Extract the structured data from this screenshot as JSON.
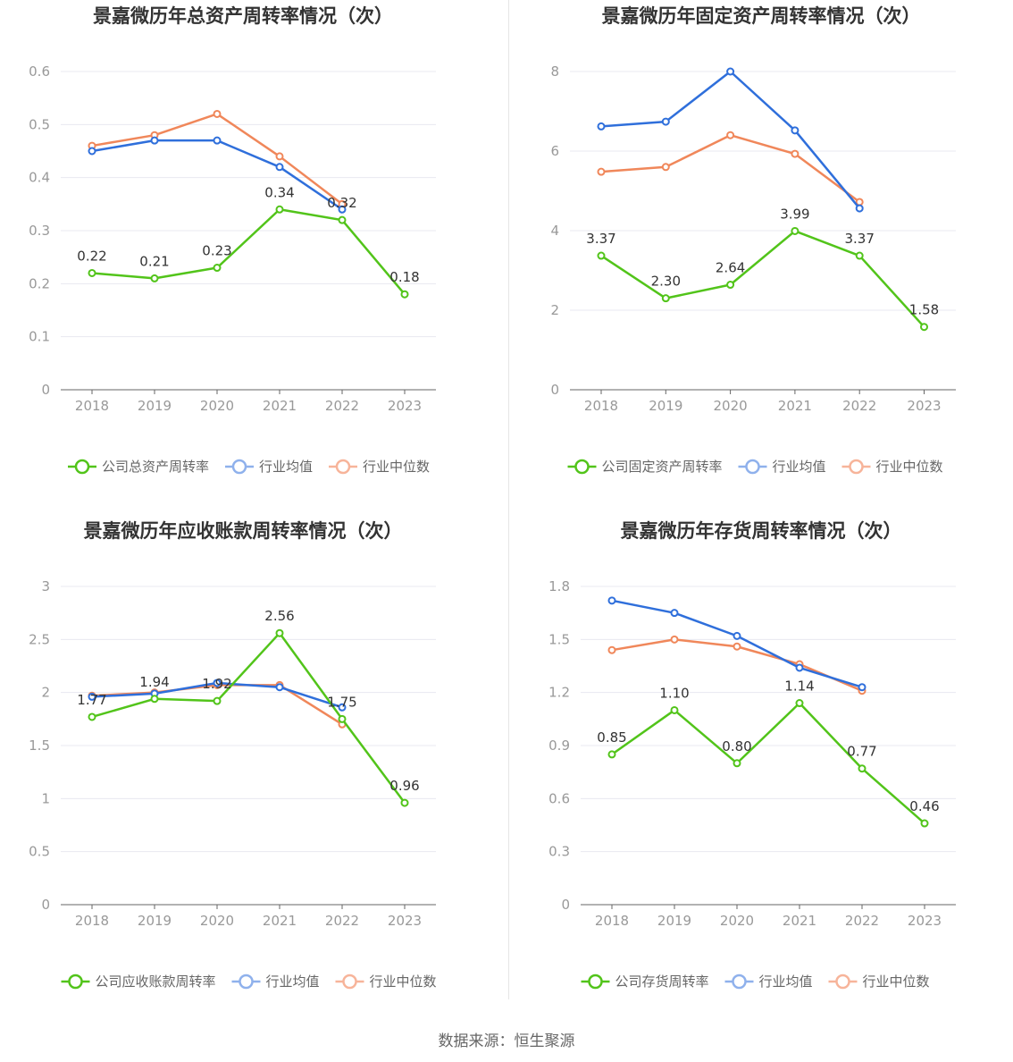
{
  "colors": {
    "company": "#52c41a",
    "avg": "#2f6fdb",
    "median": "#f0875a",
    "avg_legend": "#8fb1ec",
    "median_legend": "#f7b49a",
    "grid": "#e8e8f0",
    "axis": "#666666"
  },
  "source": "数据来源：恒生聚源",
  "chart_data": [
    {
      "type": "line",
      "title": "景嘉微历年总资产周转率情况（次）",
      "categories": [
        "2018",
        "2019",
        "2020",
        "2021",
        "2022",
        "2023"
      ],
      "ylim": [
        0,
        0.6
      ],
      "yticks": [
        "0",
        "0.1",
        "0.2",
        "0.3",
        "0.4",
        "0.5",
        "0.6"
      ],
      "ytick_values": [
        0,
        0.1,
        0.2,
        0.3,
        0.4,
        0.5,
        0.6
      ],
      "series": [
        {
          "name": "公司总资产周转率",
          "key": "company",
          "values": [
            0.22,
            0.21,
            0.23,
            0.34,
            0.32,
            0.18
          ],
          "labels": [
            "0.22",
            "0.21",
            "0.23",
            "0.34",
            "0.32",
            "0.18"
          ]
        },
        {
          "name": "行业均值",
          "key": "avg",
          "values": [
            0.45,
            0.47,
            0.47,
            0.42,
            0.34,
            null
          ]
        },
        {
          "name": "行业中位数",
          "key": "median",
          "values": [
            0.46,
            0.48,
            0.52,
            0.44,
            0.35,
            null
          ]
        }
      ]
    },
    {
      "type": "line",
      "title": "景嘉微历年固定资产周转率情况（次）",
      "categories": [
        "2018",
        "2019",
        "2020",
        "2021",
        "2022",
        "2023"
      ],
      "ylim": [
        0,
        8
      ],
      "yticks": [
        "0",
        "2",
        "4",
        "6",
        "8"
      ],
      "ytick_values": [
        0,
        2,
        4,
        6,
        8
      ],
      "series": [
        {
          "name": "公司固定资产周转率",
          "key": "company",
          "values": [
            3.37,
            2.3,
            2.64,
            3.99,
            3.37,
            1.58
          ],
          "labels": [
            "3.37",
            "2.30",
            "2.64",
            "3.99",
            "3.37",
            "1.58"
          ]
        },
        {
          "name": "行业均值",
          "key": "avg",
          "values": [
            6.62,
            6.74,
            8.0,
            6.52,
            4.56,
            null
          ]
        },
        {
          "name": "行业中位数",
          "key": "median",
          "values": [
            5.48,
            5.6,
            6.4,
            5.93,
            4.72,
            null
          ]
        }
      ]
    },
    {
      "type": "line",
      "title": "景嘉微历年应收账款周转率情况（次）",
      "categories": [
        "2018",
        "2019",
        "2020",
        "2021",
        "2022",
        "2023"
      ],
      "ylim": [
        0,
        3
      ],
      "yticks": [
        "0",
        "0.5",
        "1",
        "1.5",
        "2",
        "2.5",
        "3"
      ],
      "ytick_values": [
        0,
        0.5,
        1,
        1.5,
        2,
        2.5,
        3
      ],
      "series": [
        {
          "name": "公司应收账款周转率",
          "key": "company",
          "values": [
            1.77,
            1.94,
            1.92,
            2.56,
            1.75,
            0.96
          ],
          "labels": [
            "1.77",
            "1.94",
            "1.92",
            "2.56",
            "1.75",
            "0.96"
          ]
        },
        {
          "name": "行业均值",
          "key": "avg",
          "values": [
            1.96,
            1.99,
            2.09,
            2.05,
            1.86,
            null
          ]
        },
        {
          "name": "行业中位数",
          "key": "median",
          "values": [
            1.97,
            2.0,
            2.07,
            2.07,
            1.7,
            null
          ]
        }
      ]
    },
    {
      "type": "line",
      "title": "景嘉微历年存货周转率情况（次）",
      "categories": [
        "2018",
        "2019",
        "2020",
        "2021",
        "2022",
        "2023"
      ],
      "ylim": [
        0,
        1.8
      ],
      "yticks": [
        "0",
        "0.3",
        "0.6",
        "0.9",
        "1.2",
        "1.5",
        "1.8"
      ],
      "ytick_values": [
        0,
        0.3,
        0.6,
        0.9,
        1.2,
        1.5,
        1.8
      ],
      "series": [
        {
          "name": "公司存货周转率",
          "key": "company",
          "values": [
            0.85,
            1.1,
            0.8,
            1.14,
            0.77,
            0.46
          ],
          "labels": [
            "0.85",
            "1.10",
            "0.80",
            "1.14",
            "0.77",
            "0.46"
          ]
        },
        {
          "name": "行业均值",
          "key": "avg",
          "values": [
            1.72,
            1.65,
            1.52,
            1.34,
            1.23,
            null
          ]
        },
        {
          "name": "行业中位数",
          "key": "median",
          "values": [
            1.44,
            1.5,
            1.46,
            1.36,
            1.21,
            null
          ]
        }
      ]
    }
  ]
}
